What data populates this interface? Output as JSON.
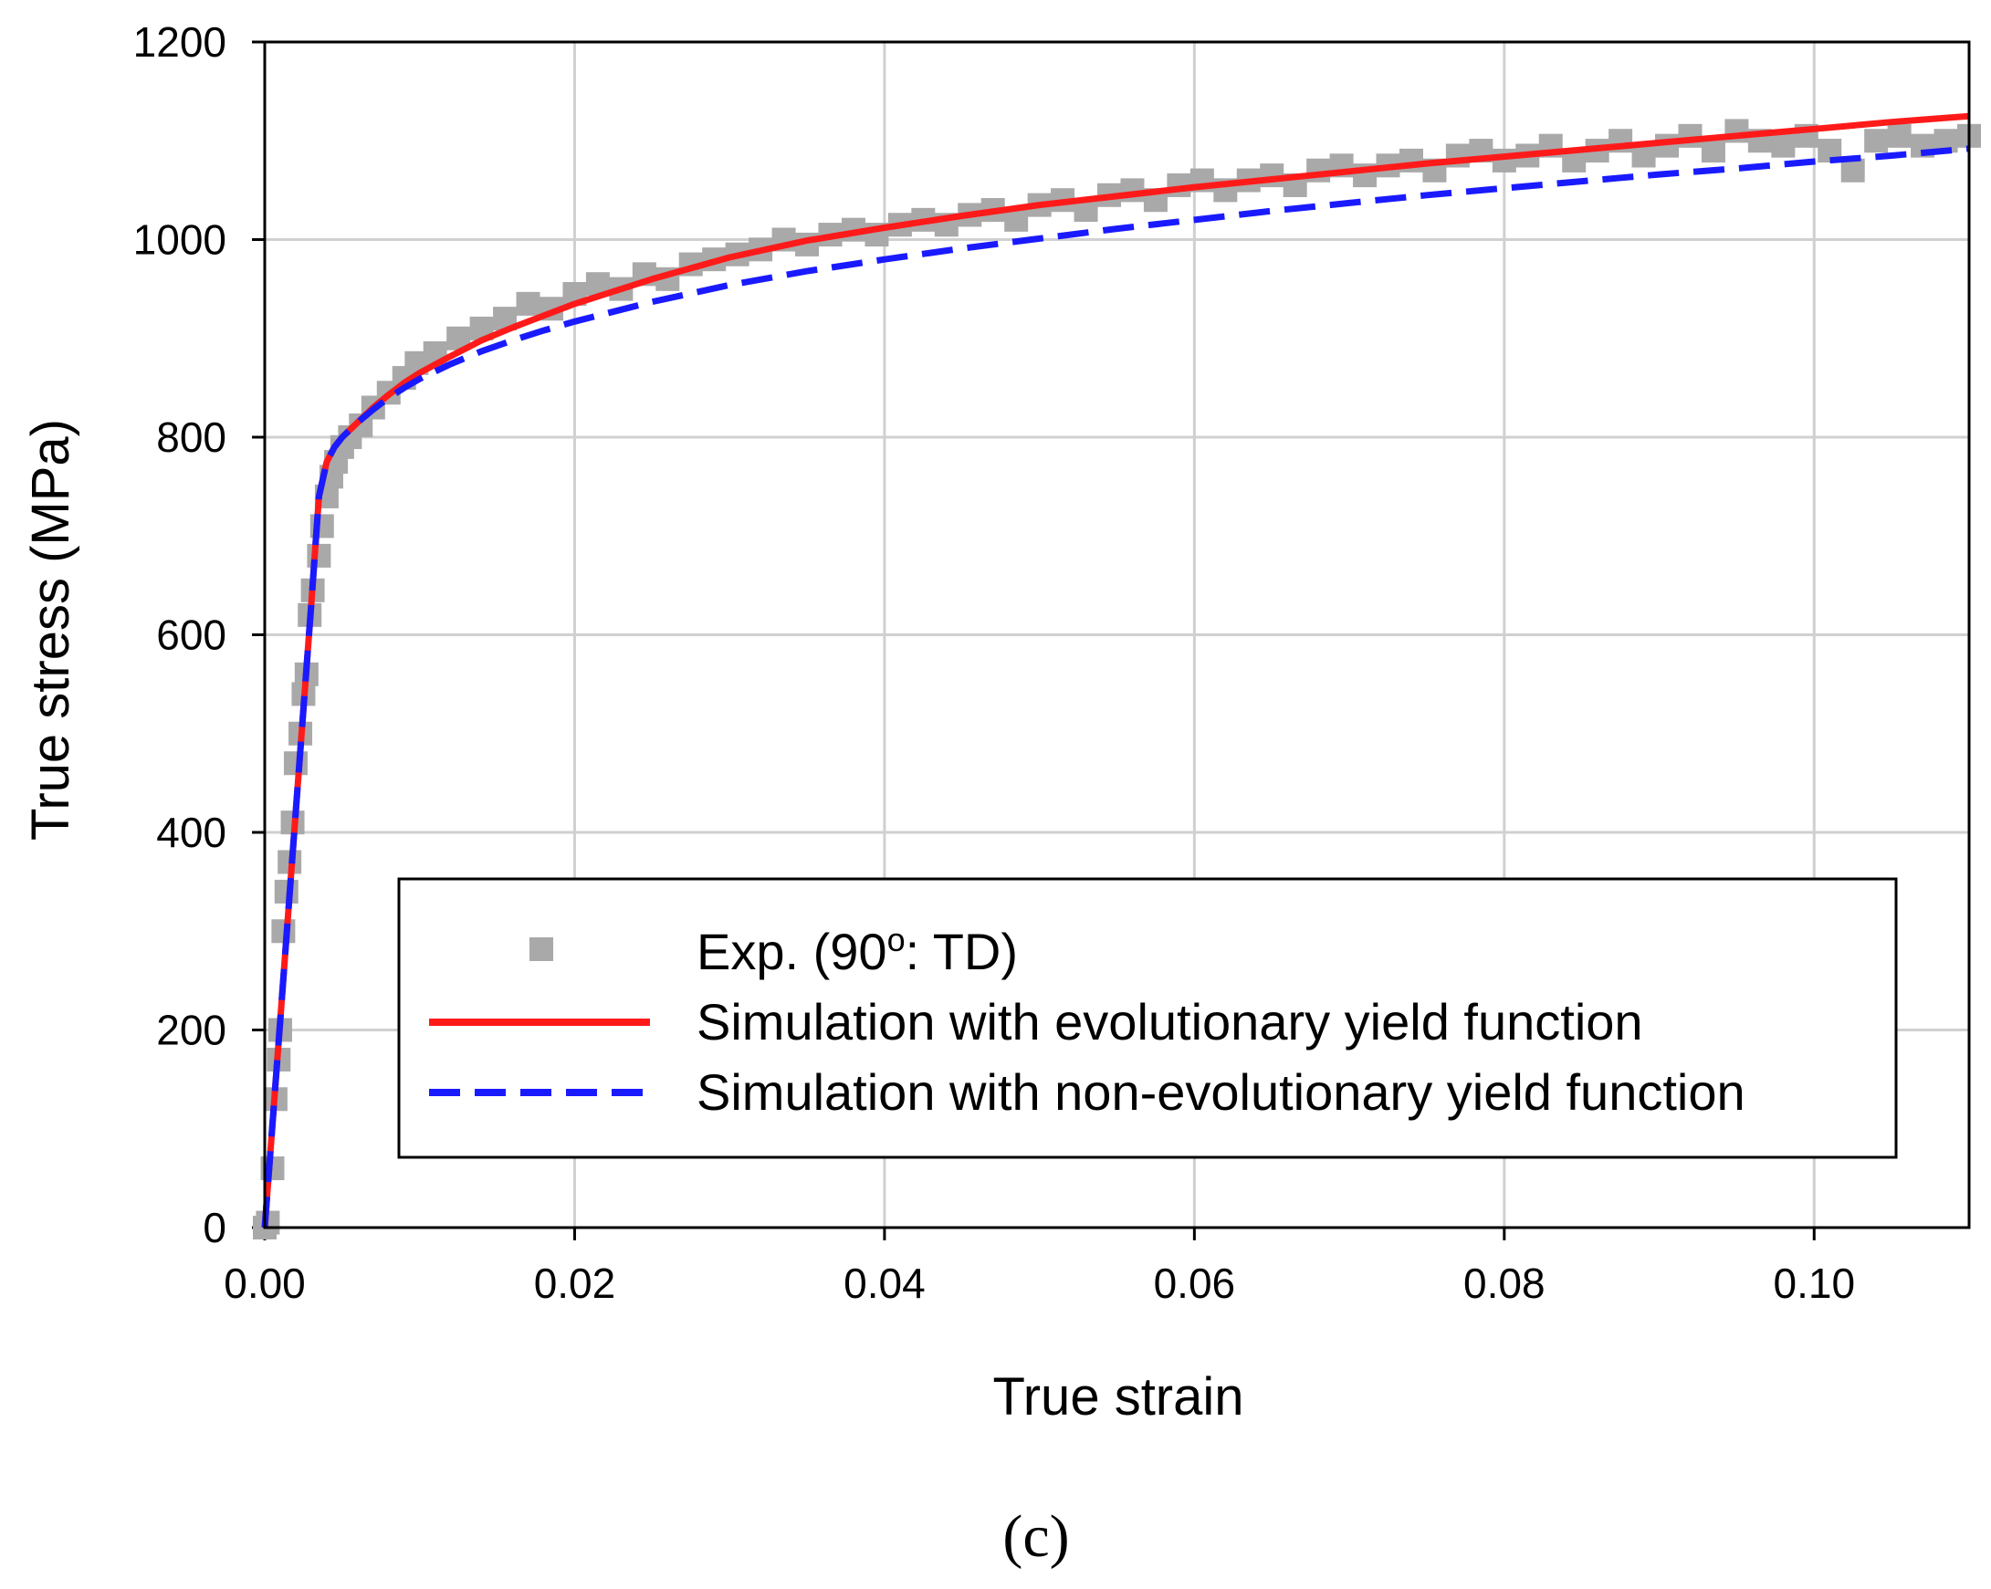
{
  "chart_data": {
    "type": "line",
    "panel_label": "(c)",
    "xlabel": "True strain",
    "ylabel": "True stress (MPa)",
    "xlim": [
      0,
      0.11
    ],
    "ylim": [
      0,
      1200
    ],
    "x_ticks": [
      0.0,
      0.02,
      0.04,
      0.06,
      0.08,
      0.1
    ],
    "x_tick_labels": [
      "0.00",
      "0.02",
      "0.04",
      "0.06",
      "0.08",
      "0.10"
    ],
    "y_ticks": [
      0,
      200,
      400,
      600,
      800,
      1000,
      1200
    ],
    "y_tick_labels": [
      "0",
      "200",
      "400",
      "600",
      "800",
      "1000",
      "1200"
    ],
    "grid": true,
    "legend_position": "lower-right",
    "legend": {
      "exp_prefix": "Exp. (90",
      "exp_superscript": "o",
      "exp_suffix": ": TD)",
      "evo": "Simulation with evolutionary yield function",
      "nonevo": "Simulation with non-evolutionary yield function"
    },
    "series": [
      {
        "name": "Exp. (90o: TD)",
        "style": "scatter-square",
        "color": "#a9a9a9",
        "x": [
          0.0,
          0.0002,
          0.0005,
          0.0007,
          0.0009,
          0.001,
          0.0012,
          0.0014,
          0.0016,
          0.0018,
          0.002,
          0.0023,
          0.0025,
          0.0027,
          0.0029,
          0.0031,
          0.0035,
          0.0037,
          0.004,
          0.0043,
          0.0046,
          0.005,
          0.0055,
          0.0062,
          0.007,
          0.008,
          0.009,
          0.0098,
          0.011,
          0.0125,
          0.014,
          0.0155,
          0.017,
          0.0185,
          0.02,
          0.0215,
          0.023,
          0.0245,
          0.026,
          0.0275,
          0.029,
          0.0305,
          0.032,
          0.0335,
          0.035,
          0.0365,
          0.038,
          0.0395,
          0.041,
          0.0425,
          0.044,
          0.0455,
          0.047,
          0.0485,
          0.05,
          0.0515,
          0.053,
          0.0545,
          0.056,
          0.0575,
          0.059,
          0.0605,
          0.062,
          0.0635,
          0.065,
          0.0665,
          0.068,
          0.0695,
          0.071,
          0.0725,
          0.074,
          0.0755,
          0.077,
          0.0785,
          0.08,
          0.0815,
          0.083,
          0.0845,
          0.086,
          0.0875,
          0.089,
          0.0905,
          0.092,
          0.0935,
          0.095,
          0.0965,
          0.098,
          0.0995,
          0.101,
          0.1025,
          0.104,
          0.1055,
          0.107,
          0.1085,
          0.11
        ],
        "y": [
          0,
          5,
          60,
          130,
          170,
          200,
          300,
          340,
          370,
          410,
          470,
          500,
          540,
          560,
          620,
          645,
          680,
          710,
          740,
          760,
          775,
          790,
          800,
          812,
          830,
          845,
          860,
          875,
          885,
          900,
          910,
          920,
          935,
          930,
          945,
          955,
          950,
          965,
          960,
          975,
          980,
          985,
          990,
          1000,
          995,
          1005,
          1010,
          1005,
          1015,
          1020,
          1015,
          1025,
          1030,
          1020,
          1035,
          1040,
          1030,
          1045,
          1050,
          1040,
          1055,
          1060,
          1050,
          1060,
          1065,
          1055,
          1070,
          1075,
          1065,
          1075,
          1080,
          1070,
          1085,
          1090,
          1080,
          1085,
          1095,
          1080,
          1090,
          1100,
          1085,
          1095,
          1105,
          1090,
          1110,
          1100,
          1095,
          1105,
          1090,
          1070,
          1100,
          1105,
          1095,
          1100,
          1105
        ]
      },
      {
        "name": "Simulation with evolutionary yield function",
        "style": "solid",
        "color": "#ff1a1a",
        "x": [
          0.0,
          0.001,
          0.002,
          0.003,
          0.0035,
          0.004,
          0.0045,
          0.005,
          0.006,
          0.007,
          0.008,
          0.009,
          0.01,
          0.012,
          0.014,
          0.016,
          0.018,
          0.02,
          0.025,
          0.03,
          0.035,
          0.04,
          0.045,
          0.05,
          0.055,
          0.06,
          0.065,
          0.07,
          0.075,
          0.08,
          0.085,
          0.09,
          0.095,
          0.1,
          0.105,
          0.11
        ],
        "y": [
          0,
          210,
          420,
          630,
          740,
          775,
          790,
          800,
          815,
          830,
          843,
          855,
          865,
          882,
          898,
          911,
          923,
          935,
          960,
          982,
          999,
          1012,
          1024,
          1035,
          1044,
          1053,
          1061,
          1069,
          1077,
          1084,
          1091,
          1098,
          1105,
          1112,
          1119,
          1125
        ]
      },
      {
        "name": "Simulation with non-evolutionary yield function",
        "style": "dashed",
        "color": "#1a1aff",
        "x": [
          0.0,
          0.001,
          0.002,
          0.003,
          0.0035,
          0.004,
          0.0045,
          0.005,
          0.006,
          0.007,
          0.008,
          0.009,
          0.01,
          0.012,
          0.014,
          0.016,
          0.018,
          0.02,
          0.025,
          0.03,
          0.035,
          0.04,
          0.045,
          0.05,
          0.055,
          0.06,
          0.065,
          0.07,
          0.075,
          0.08,
          0.085,
          0.09,
          0.095,
          0.1,
          0.105,
          0.11
        ],
        "y": [
          0,
          210,
          420,
          630,
          740,
          775,
          790,
          800,
          815,
          828,
          840,
          850,
          859,
          874,
          887,
          898,
          908,
          917,
          937,
          954,
          968,
          980,
          991,
          1001,
          1011,
          1020,
          1029,
          1037,
          1045,
          1052,
          1059,
          1066,
          1072,
          1079,
          1085,
          1092
        ]
      }
    ]
  }
}
